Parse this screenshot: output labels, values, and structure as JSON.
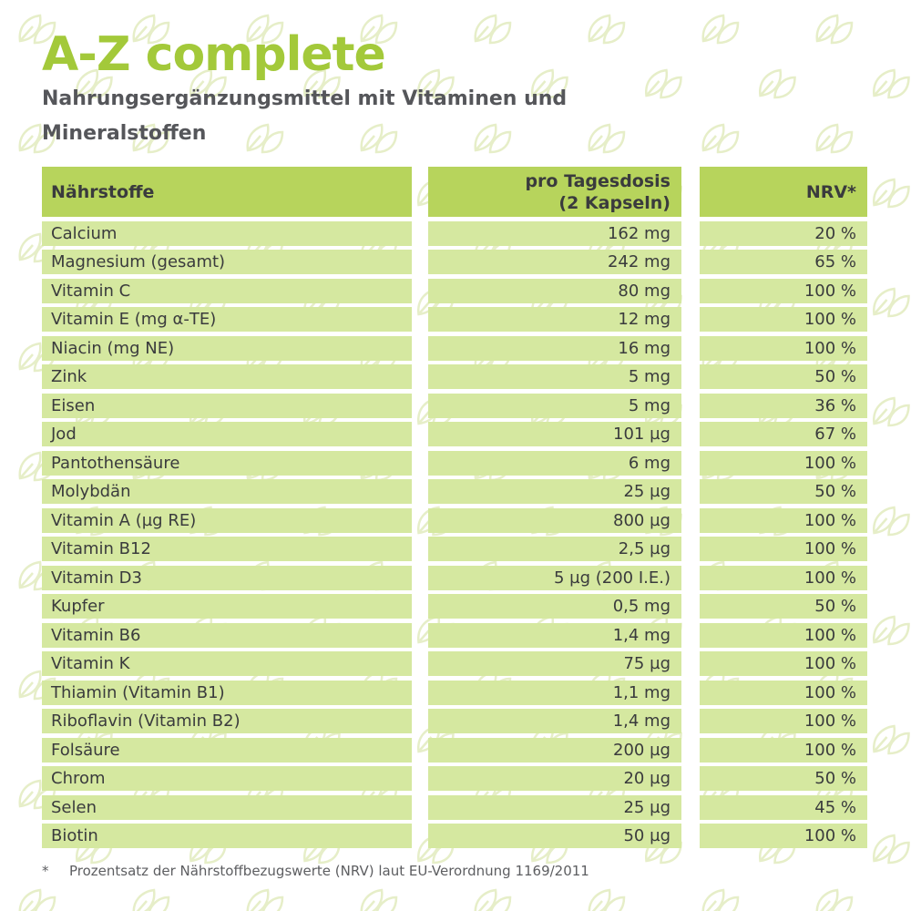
{
  "title": "A-Z complete",
  "subtitle": "Nahrungsergänzungsmittel mit Vitaminen und Mineralstoffen",
  "colors": {
    "title": "#a3c93a",
    "subtitle": "#55565a",
    "header_cell": "#b7d45c",
    "row_cell": "#d5e8a0",
    "text": "#3a3b3d",
    "leaf_pattern": "#e6eec8"
  },
  "background_icon": "leaf-icon",
  "table": {
    "headers": {
      "nutrient": "Nährstoffe",
      "per_dose": "pro Tagesdosis\n(2 Kapseln)",
      "nrv": "NRV*"
    },
    "rows": [
      {
        "nutrient": "Calcium",
        "per_dose": "162 mg",
        "nrv": "20 %"
      },
      {
        "nutrient": "Magnesium (gesamt)",
        "per_dose": "242 mg",
        "nrv": "65 %"
      },
      {
        "nutrient": "Vitamin C",
        "per_dose": "80 mg",
        "nrv": "100 %"
      },
      {
        "nutrient": "Vitamin E (mg α-TE)",
        "per_dose": "12 mg",
        "nrv": "100 %"
      },
      {
        "nutrient": "Niacin (mg NE)",
        "per_dose": "16 mg",
        "nrv": "100 %"
      },
      {
        "nutrient": "Zink",
        "per_dose": "5 mg",
        "nrv": "50 %"
      },
      {
        "nutrient": "Eisen",
        "per_dose": "5 mg",
        "nrv": "36 %"
      },
      {
        "nutrient": "Jod",
        "per_dose": "101 µg",
        "nrv": "67 %"
      },
      {
        "nutrient": "Pantothensäure",
        "per_dose": "6 mg",
        "nrv": "100 %"
      },
      {
        "nutrient": "Molybdän",
        "per_dose": "25 µg",
        "nrv": "50 %"
      },
      {
        "nutrient": "Vitamin A (µg RE)",
        "per_dose": "800 µg",
        "nrv": "100 %"
      },
      {
        "nutrient": "Vitamin B12",
        "per_dose": "2,5 µg",
        "nrv": "100 %"
      },
      {
        "nutrient": "Vitamin D3",
        "per_dose": "5 µg (200 I.E.)",
        "nrv": "100 %"
      },
      {
        "nutrient": "Kupfer",
        "per_dose": "0,5 mg",
        "nrv": "50 %"
      },
      {
        "nutrient": "Vitamin B6",
        "per_dose": "1,4 mg",
        "nrv": "100 %"
      },
      {
        "nutrient": "Vitamin K",
        "per_dose": "75 µg",
        "nrv": "100 %"
      },
      {
        "nutrient": "Thiamin (Vitamin B1)",
        "per_dose": "1,1 mg",
        "nrv": "100 %"
      },
      {
        "nutrient": "Riboflavin (Vitamin B2)",
        "per_dose": "1,4 mg",
        "nrv": "100 %"
      },
      {
        "nutrient": "Folsäure",
        "per_dose": "200 µg",
        "nrv": "100 %"
      },
      {
        "nutrient": "Chrom",
        "per_dose": "20 µg",
        "nrv": "50 %"
      },
      {
        "nutrient": "Selen",
        "per_dose": "25 µg",
        "nrv": "45 %"
      },
      {
        "nutrient": "Biotin",
        "per_dose": "50 µg",
        "nrv": "100 %"
      }
    ]
  },
  "footnote": {
    "marker": "*",
    "text": "Prozentsatz der Nährstoffbezugswerte (NRV) laut EU-Verordnung 1169/2011"
  }
}
